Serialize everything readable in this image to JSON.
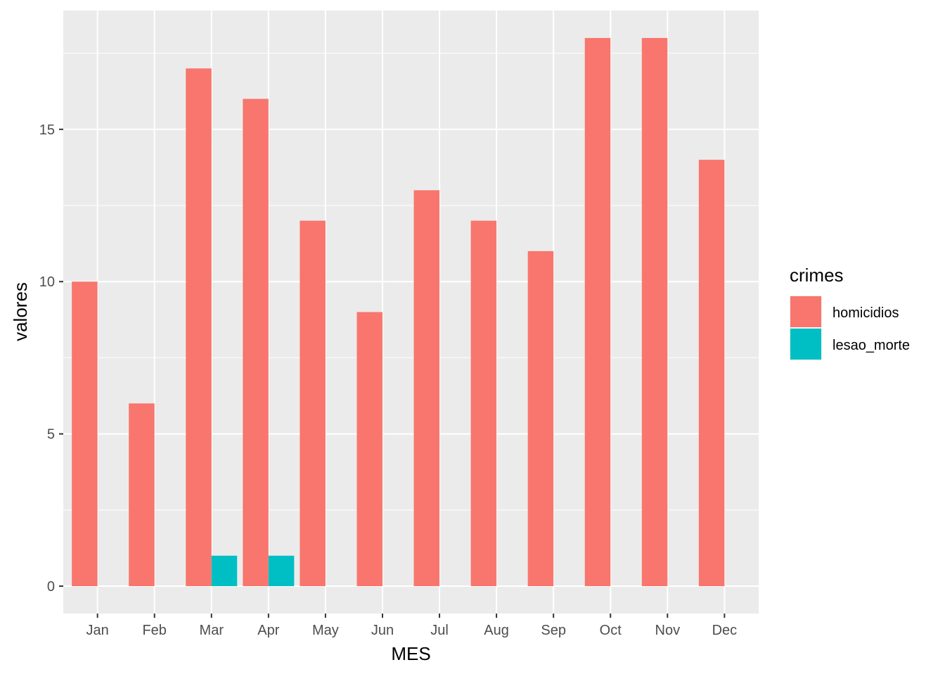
{
  "chart_data": {
    "type": "bar",
    "layout": "dodge",
    "xlabel": "MES",
    "ylabel": "valores",
    "categories": [
      "Jan",
      "Feb",
      "Mar",
      "Apr",
      "May",
      "Jun",
      "Jul",
      "Aug",
      "Sep",
      "Oct",
      "Nov",
      "Dec"
    ],
    "series": [
      {
        "name": "homicidios",
        "color": "#F8766D",
        "values": [
          10,
          6,
          17,
          16,
          12,
          9,
          13,
          12,
          11,
          18,
          18,
          14
        ]
      },
      {
        "name": "lesao_morte",
        "color": "#00BFC4",
        "values": [
          0,
          0,
          1,
          1,
          0,
          0,
          0,
          0,
          0,
          0,
          0,
          0
        ]
      }
    ],
    "ylim": [
      -0.9,
      18.9
    ],
    "yticks": [
      0,
      5,
      10,
      15
    ],
    "grid": true,
    "legend": {
      "title": "crimes",
      "position": "right"
    },
    "panel_background": "#EBEBEB"
  }
}
